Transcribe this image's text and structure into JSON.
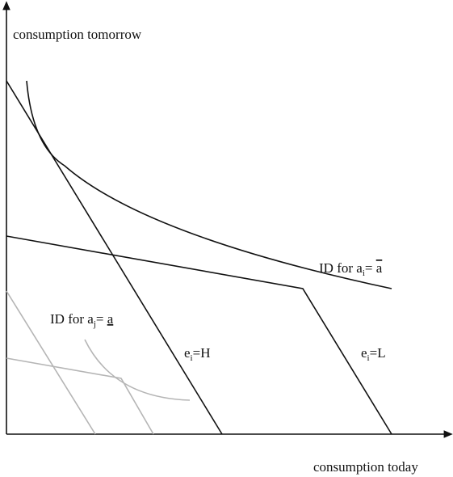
{
  "axes": {
    "y_label": "consumption tomorrow",
    "x_label": "consumption today"
  },
  "labels": {
    "id_high": {
      "text": "ID for a",
      "subscript": "i",
      "equals": "= ",
      "symbol": "a"
    },
    "id_low": {
      "text": "ID for a",
      "subscript": "j",
      "equals": "= ",
      "symbol": "a"
    },
    "effort_high": {
      "text": "e",
      "subscript": "i",
      "value": "=H"
    },
    "effort_low": {
      "text": "e",
      "subscript": "i",
      "value": "=L"
    }
  }
}
